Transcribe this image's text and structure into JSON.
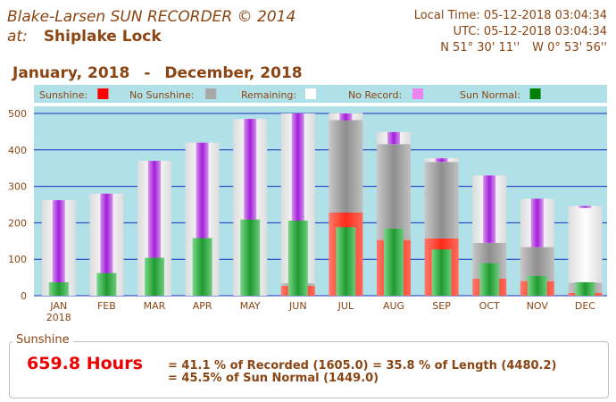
{
  "header": {
    "title": "Blake-Larsen SUN RECORDER © 2014",
    "at_label": "at:",
    "location": "Shiplake Lock",
    "local_time": "Local Time: 05-12-2018 03:04:34",
    "utc_time": "UTC: 05-12-2018 03:04:34",
    "latitude": "N 51° 30' 11''",
    "longitude": "W 0° 53' 56''"
  },
  "period": {
    "from": "January, 2018",
    "dash": "-",
    "to": "December, 2018"
  },
  "summary": {
    "legend": "Sunshine",
    "hours": "659.8 Hours",
    "line1": "= 41.1 % of Recorded (1605.0) = 35.8 % of Length (4480.2)",
    "line2": "= 45.5% of Sun Normal (1449.0)"
  },
  "colors": {
    "plot_bg": "#b0e0e8",
    "sunshine": "#ff2a1a",
    "no_sunshine": "#a0a0a0",
    "remaining": "#ffffff",
    "no_record": "#b040e0",
    "sun_normal": "#20a030",
    "grid": "#1a2bbf"
  },
  "chart_data": {
    "type": "bar",
    "legend": [
      {
        "name": "Sunshine:",
        "color": "#ff0000"
      },
      {
        "name": "No Sunshine:",
        "color": "#a8a8a8"
      },
      {
        "name": "Remaining:",
        "color": "#ffffff"
      },
      {
        "name": "No Record:",
        "color": "#ee82ee"
      },
      {
        "name": "Sun Normal:",
        "color": "#008000"
      }
    ],
    "categories": [
      "JAN",
      "FEB",
      "MAR",
      "APR",
      "MAY",
      "JUN",
      "JUL",
      "AUG",
      "SEP",
      "OCT",
      "NOV",
      "DEC"
    ],
    "sub_labels": [
      "2018",
      "",
      "",
      "",
      "",
      "",
      "",
      "",
      "",
      "",
      "",
      ""
    ],
    "ylim": [
      0,
      500
    ],
    "yticks": [
      0,
      100,
      200,
      300,
      400,
      500
    ],
    "grid": true,
    "series": [
      {
        "name": "Sunshine",
        "values": [
          0,
          0,
          0,
          0,
          0,
          27,
          228,
          153,
          157,
          47,
          40,
          8
        ]
      },
      {
        "name": "No Sunshine",
        "values": [
          0,
          0,
          0,
          0,
          0,
          7,
          254,
          263,
          210,
          98,
          93,
          28
        ]
      },
      {
        "name": "Remaining",
        "values": [
          0,
          0,
          0,
          0,
          0,
          0,
          19,
          33,
          10,
          180,
          0,
          210
        ]
      },
      {
        "name": "No Record",
        "values": [
          262,
          280,
          370,
          420,
          485,
          500,
          19,
          33,
          10,
          185,
          133,
          5
        ]
      },
      {
        "name": "Sun Normal",
        "values": [
          37,
          62,
          104,
          158,
          209,
          206,
          188,
          184,
          127,
          89,
          54,
          37
        ]
      }
    ],
    "day_length": [
      262,
      280,
      370,
      420,
      485,
      500,
      500,
      449,
      377,
      330,
      266,
      246
    ]
  }
}
